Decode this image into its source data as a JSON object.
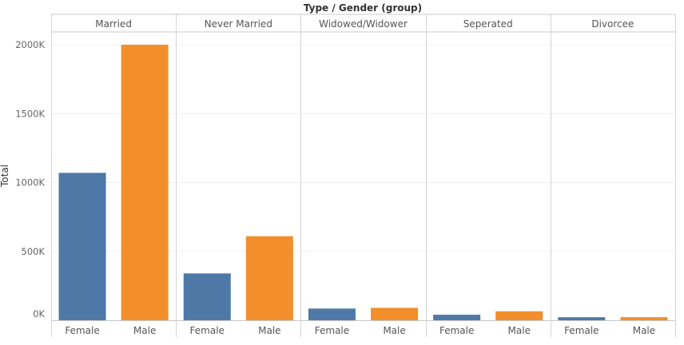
{
  "chart_data": {
    "type": "bar",
    "title": "Type / Gender (group)",
    "ylabel": "Total",
    "ylim": [
      0,
      2200000
    ],
    "yticks": [
      0,
      500000,
      1000000,
      1500000,
      2000000
    ],
    "ytick_labels": [
      "0K",
      "500K",
      "1000K",
      "1500K",
      "2000K"
    ],
    "grid": true,
    "colors": {
      "Female": "#4e79a7",
      "Male": "#f28e2b"
    },
    "groups": [
      {
        "label": "Married",
        "categories": [
          "Female",
          "Male"
        ],
        "values": [
          1070000,
          2000000
        ]
      },
      {
        "label": "Never Married",
        "categories": [
          "Female",
          "Male"
        ],
        "values": [
          340000,
          610000
        ]
      },
      {
        "label": "Widowed/Widower",
        "categories": [
          "Female",
          "Male"
        ],
        "values": [
          85000,
          90000
        ]
      },
      {
        "label": "Seperated",
        "categories": [
          "Female",
          "Male"
        ],
        "values": [
          40000,
          65000
        ]
      },
      {
        "label": "Divorcee",
        "categories": [
          "Female",
          "Male"
        ],
        "values": [
          22000,
          22000
        ]
      }
    ]
  }
}
